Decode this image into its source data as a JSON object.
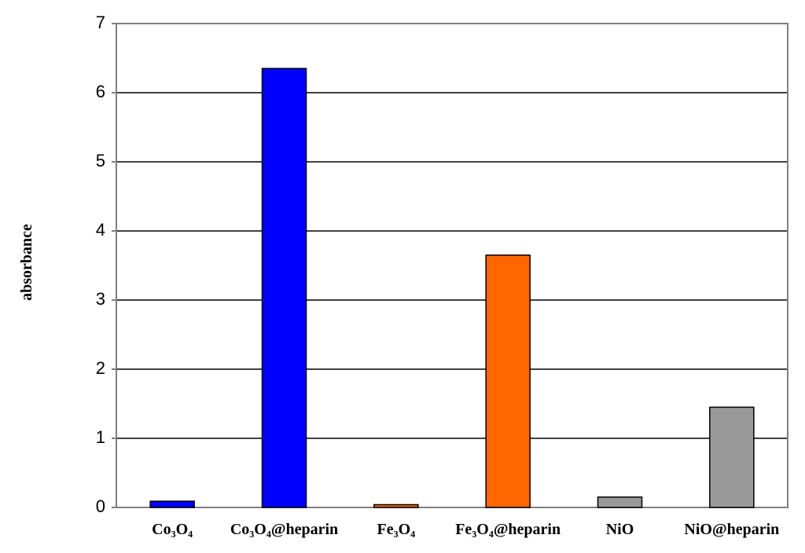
{
  "chart_data": {
    "type": "bar",
    "y_label": "absorbance",
    "categories": [
      "Co₃O₄",
      "Co₃O₄@heparin",
      "Fe₃O₄",
      "Fe₃O₄@heparin",
      "NiO",
      "NiO@heparin"
    ],
    "values": [
      0.09,
      6.35,
      0.04,
      3.65,
      0.15,
      1.45
    ],
    "colors": [
      "#0000ff",
      "#0000ff",
      "#ff6600",
      "#ff6600",
      "#999999",
      "#999999"
    ],
    "ylim": [
      0,
      7
    ],
    "yticks": [
      0,
      1,
      2,
      3,
      4,
      5,
      6,
      7
    ],
    "grid": true
  }
}
